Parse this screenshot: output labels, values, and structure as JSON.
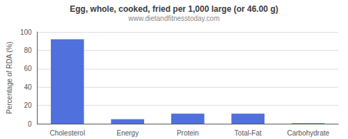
{
  "chart_data": {
    "type": "bar",
    "title": "Egg, whole, cooked, fried per 1,000 large (or 46.00 g)",
    "subtitle": "www.dietandfitnesstoday.com",
    "categories": [
      "Cholesterol",
      "Energy",
      "Protein",
      "Total-Fat",
      "Carbohydrate"
    ],
    "values": [
      92,
      5,
      11,
      11,
      0.5
    ],
    "ylabel": "Percentage of RDA (%)",
    "ylim": [
      0,
      100
    ],
    "yticks": [
      0,
      20,
      40,
      60,
      80,
      100
    ],
    "grid": true
  }
}
